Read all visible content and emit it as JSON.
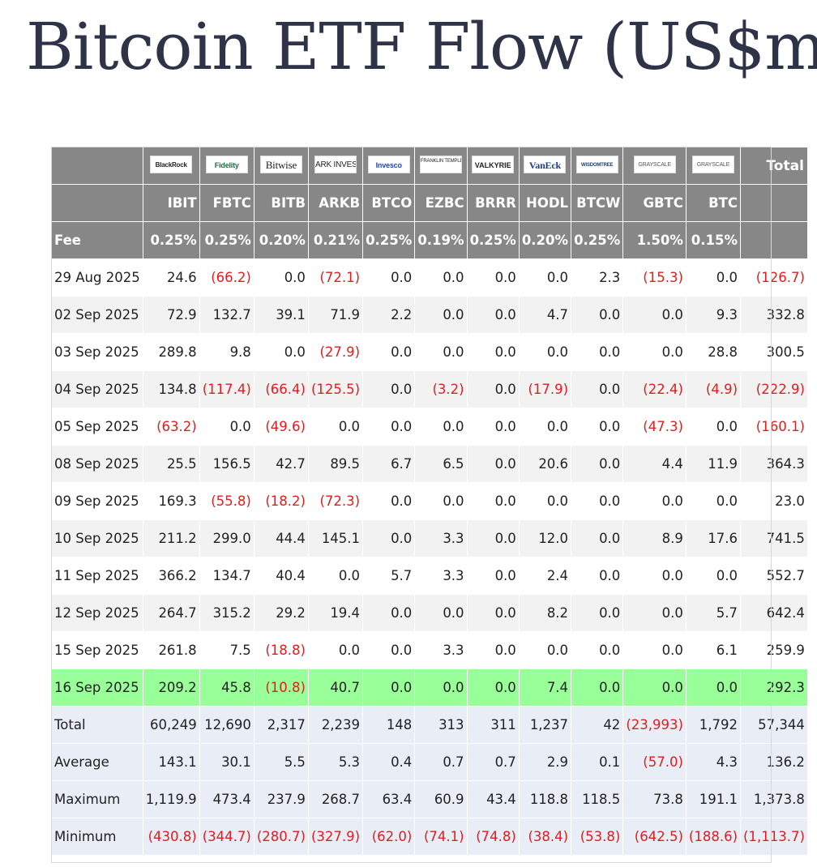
{
  "title": "Bitcoin ETF Flow (US$m)",
  "table": {
    "logos": [
      "BlackRock",
      "Fidelity",
      "Bitwise",
      "ARK INVEST",
      "Invesco",
      "FRANKLIN TEMPLETON",
      "VALKYRIE",
      "VanEck",
      "WISDOMTREE",
      "GRAYSCALE",
      "GRAYSCALE"
    ],
    "total_header": "Total",
    "tickers": [
      "IBIT",
      "FBTC",
      "BITB",
      "ARKB",
      "BTCO",
      "EZBC",
      "BRRR",
      "HODL",
      "BTCW",
      "GBTC",
      "BTC"
    ],
    "fee_label": "Fee",
    "fees": [
      "0.25%",
      "0.25%",
      "0.20%",
      "0.21%",
      "0.25%",
      "0.19%",
      "0.25%",
      "0.20%",
      "0.25%",
      "1.50%",
      "0.15%"
    ],
    "rows": [
      {
        "date": "29 Aug 2025",
        "values": [
          "24.6",
          "(66.2)",
          "0.0",
          "(72.1)",
          "0.0",
          "0.0",
          "0.0",
          "0.0",
          "2.3",
          "(15.3)",
          "0.0",
          "(126.7)"
        ]
      },
      {
        "date": "02 Sep 2025",
        "values": [
          "72.9",
          "132.7",
          "39.1",
          "71.9",
          "2.2",
          "0.0",
          "0.0",
          "4.7",
          "0.0",
          "0.0",
          "9.3",
          "332.8"
        ]
      },
      {
        "date": "03 Sep 2025",
        "values": [
          "289.8",
          "9.8",
          "0.0",
          "(27.9)",
          "0.0",
          "0.0",
          "0.0",
          "0.0",
          "0.0",
          "0.0",
          "28.8",
          "300.5"
        ]
      },
      {
        "date": "04 Sep 2025",
        "values": [
          "134.8",
          "(117.4)",
          "(66.4)",
          "(125.5)",
          "0.0",
          "(3.2)",
          "0.0",
          "(17.9)",
          "0.0",
          "(22.4)",
          "(4.9)",
          "(222.9)"
        ]
      },
      {
        "date": "05 Sep 2025",
        "values": [
          "(63.2)",
          "0.0",
          "(49.6)",
          "0.0",
          "0.0",
          "0.0",
          "0.0",
          "0.0",
          "0.0",
          "(47.3)",
          "0.0",
          "(160.1)"
        ]
      },
      {
        "date": "08 Sep 2025",
        "values": [
          "25.5",
          "156.5",
          "42.7",
          "89.5",
          "6.7",
          "6.5",
          "0.0",
          "20.6",
          "0.0",
          "4.4",
          "11.9",
          "364.3"
        ]
      },
      {
        "date": "09 Sep 2025",
        "values": [
          "169.3",
          "(55.8)",
          "(18.2)",
          "(72.3)",
          "0.0",
          "0.0",
          "0.0",
          "0.0",
          "0.0",
          "0.0",
          "0.0",
          "23.0"
        ]
      },
      {
        "date": "10 Sep 2025",
        "values": [
          "211.2",
          "299.0",
          "44.4",
          "145.1",
          "0.0",
          "3.3",
          "0.0",
          "12.0",
          "0.0",
          "8.9",
          "17.6",
          "741.5"
        ]
      },
      {
        "date": "11 Sep 2025",
        "values": [
          "366.2",
          "134.7",
          "40.4",
          "0.0",
          "5.7",
          "3.3",
          "0.0",
          "2.4",
          "0.0",
          "0.0",
          "0.0",
          "552.7"
        ]
      },
      {
        "date": "12 Sep 2025",
        "values": [
          "264.7",
          "315.2",
          "29.2",
          "19.4",
          "0.0",
          "0.0",
          "0.0",
          "8.2",
          "0.0",
          "0.0",
          "5.7",
          "642.4"
        ]
      },
      {
        "date": "15 Sep 2025",
        "values": [
          "261.8",
          "7.5",
          "(18.8)",
          "0.0",
          "0.0",
          "3.3",
          "0.0",
          "0.0",
          "0.0",
          "0.0",
          "6.1",
          "259.9"
        ]
      },
      {
        "date": "16 Sep 2025",
        "highlight": true,
        "values": [
          "209.2",
          "45.8",
          "(10.8)",
          "40.7",
          "0.0",
          "0.0",
          "0.0",
          "7.4",
          "0.0",
          "0.0",
          "0.0",
          "292.3"
        ]
      }
    ],
    "summary": [
      {
        "label": "Total",
        "values": [
          "60,249",
          "12,690",
          "2,317",
          "2,239",
          "148",
          "313",
          "311",
          "1,237",
          "42",
          "(23,993)",
          "1,792",
          "57,344"
        ]
      },
      {
        "label": "Average",
        "values": [
          "143.1",
          "30.1",
          "5.5",
          "5.3",
          "0.4",
          "0.7",
          "0.7",
          "2.9",
          "0.1",
          "(57.0)",
          "4.3",
          "136.2"
        ]
      },
      {
        "label": "Maximum",
        "values": [
          "1,119.9",
          "473.4",
          "237.9",
          "268.7",
          "63.4",
          "60.9",
          "43.4",
          "118.8",
          "118.5",
          "73.8",
          "191.1",
          "1,373.8"
        ]
      },
      {
        "label": "Minimum",
        "values": [
          "(430.8)",
          "(344.7)",
          "(280.7)",
          "(327.9)",
          "(62.0)",
          "(74.1)",
          "(74.8)",
          "(38.4)",
          "(53.8)",
          "(642.5)",
          "(188.6)",
          "(1,113.7)"
        ]
      }
    ],
    "colors": {
      "header_bg": "#878787",
      "negative": "#e11d1d",
      "highlight_row": "#99ff99",
      "summary_bg": "#e9edf6",
      "stripe": "#f2f2f2"
    }
  }
}
